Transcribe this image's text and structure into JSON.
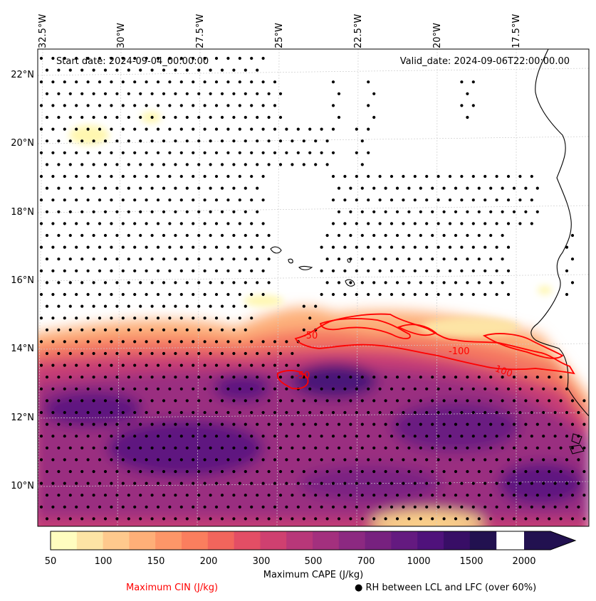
{
  "map": {
    "start_date": "Start date: 2024-09-04_00:00:00",
    "valid_date": "Valid_date: 2024-09-06T22:00:00.00",
    "longitude_labels": [
      "32.5°W",
      "30°W",
      "27.5°W",
      "25°W",
      "22.5°W",
      "20°W",
      "17.5°W"
    ],
    "latitude_labels": [
      "22°N",
      "20°N",
      "18°N",
      "16°N",
      "14°N",
      "12°N",
      "10°N"
    ],
    "cin_contour_labels": [
      "-50",
      "-50",
      "-100",
      "-100"
    ],
    "colors": {
      "cin_contour": "#ff0000",
      "coastline": "#000000",
      "stipple": "#000000",
      "gridline": "#cccccc"
    }
  },
  "colorbar": {
    "title": "Maximum CAPE (J/kg)",
    "tick_labels": [
      "50",
      "100",
      "150",
      "200",
      "300",
      "500",
      "700",
      "1000",
      "1500",
      "2000"
    ],
    "colors": [
      "#fffdbf",
      "#fde4a5",
      "#fec98d",
      "#feaf78",
      "#fd9668",
      "#fa7e5e",
      "#f2655c",
      "#e34e65",
      "#cf4070",
      "#b83779",
      "#a3307e",
      "#8c2981",
      "#77217f",
      "#641a80",
      "#4f127b",
      "#380e66",
      "#221150"
    ]
  },
  "legend": {
    "cin_label": "Maximum CIN (J/kg)",
    "rh_label": "RH between LCL and LFC (over 60%)",
    "rh_marker": "●"
  }
}
